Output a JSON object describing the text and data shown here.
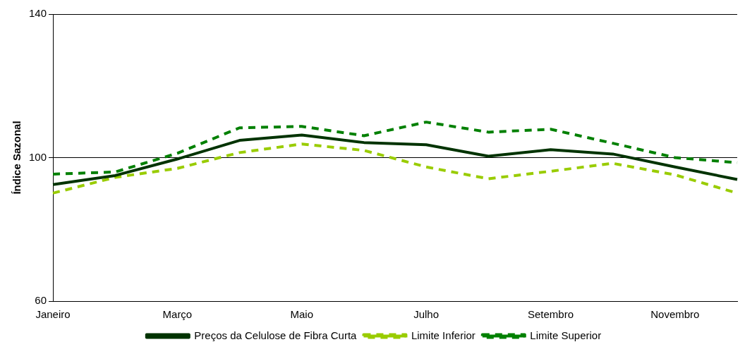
{
  "chart_data": {
    "type": "line",
    "ylabel": "Índice Sazonal",
    "categories": [
      "Janeiro",
      null,
      "Março",
      null,
      "Maio",
      null,
      "Julho",
      null,
      "Setembro",
      null,
      "Novembro",
      null
    ],
    "series": [
      {
        "name": "Preços da Celulose de Fibra Curta",
        "color": "#003300",
        "line_style": "solid",
        "values": [
          92.5,
          95.0,
          99.6,
          104.8,
          106.3,
          104.2,
          103.6,
          100.4,
          102.2,
          101.0,
          97.4,
          93.9
        ]
      },
      {
        "name": "Limite Inferior",
        "color": "#99cc00",
        "line_style": "dashed",
        "values": [
          90.1,
          94.5,
          97.0,
          101.4,
          103.8,
          102.0,
          97.4,
          94.1,
          96.2,
          98.4,
          95.2,
          90.1
        ]
      },
      {
        "name": "Limite Superior",
        "color": "#008000",
        "line_style": "dashed",
        "values": [
          95.4,
          96.0,
          101.2,
          108.3,
          108.7,
          106.1,
          109.9,
          107.1,
          107.9,
          104.0,
          100.0,
          98.6
        ]
      }
    ],
    "ylim": [
      60,
      140
    ],
    "yticks": [
      60,
      100,
      140
    ],
    "grid": "y",
    "legend": "bottom",
    "marker": "none"
  }
}
